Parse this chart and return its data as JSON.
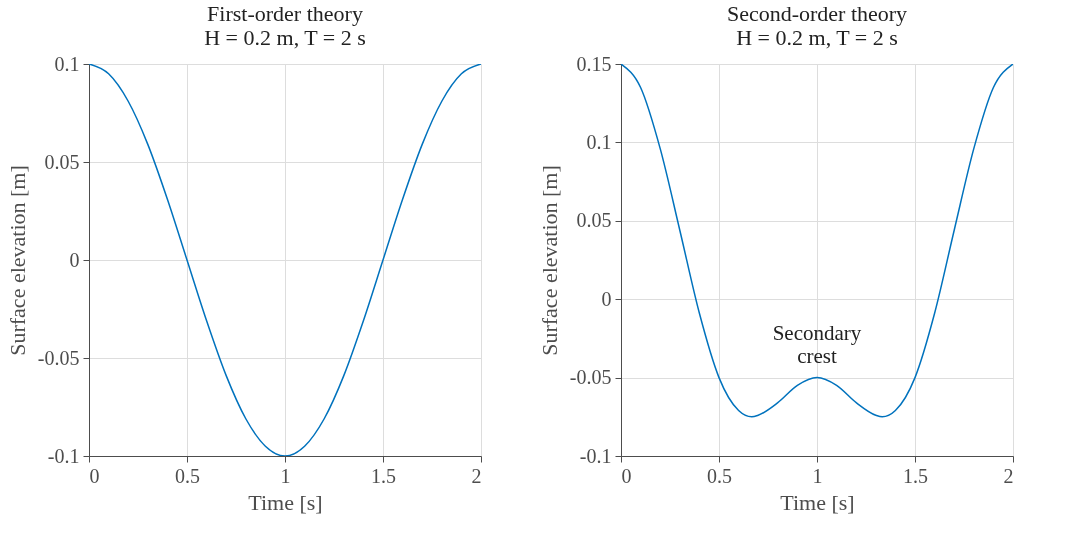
{
  "chart_data": [
    {
      "type": "line",
      "title": "First-order theory",
      "subtitle": "H = 0.2 m, T = 2 s",
      "xlabel": "Time [s]",
      "ylabel": "Surface elevation [m]",
      "x": [
        0,
        0.1,
        0.2,
        0.3,
        0.4,
        0.5,
        0.6,
        0.7,
        0.8,
        0.9,
        1,
        1.1,
        1.2,
        1.3,
        1.4,
        1.5,
        1.6,
        1.7,
        1.8,
        1.9,
        2
      ],
      "series": [
        {
          "color": "#0072bd",
          "values": [
            0.1,
            0.095,
            0.081,
            0.059,
            0.031,
            0,
            -0.031,
            -0.059,
            -0.081,
            -0.095,
            -0.1,
            -0.095,
            -0.081,
            -0.059,
            -0.031,
            0,
            0.031,
            0.059,
            0.081,
            0.095,
            0.1
          ]
        }
      ],
      "xlim": [
        0,
        2
      ],
      "xticks": [
        0,
        0.5,
        1,
        1.5,
        2
      ],
      "ylim": [
        -0.1,
        0.1
      ],
      "yticks": [
        -0.1,
        -0.05,
        0,
        0.05,
        0.1
      ],
      "grid": true
    },
    {
      "type": "line",
      "title": "Second-order theory",
      "subtitle": "H = 0.2 m, T = 2 s",
      "xlabel": "Time [s]",
      "ylabel": "Surface elevation [m]",
      "x": [
        0,
        0.1,
        0.2,
        0.3,
        0.4,
        0.5,
        0.6,
        0.667,
        0.7,
        0.8,
        0.9,
        1,
        1.1,
        1.2,
        1.3,
        1.333,
        1.4,
        1.5,
        1.6,
        1.7,
        1.8,
        1.9,
        2
      ],
      "series": [
        {
          "color": "#0072bd",
          "values": [
            0.15,
            0.135,
            0.096,
            0.044,
            -0.009,
            -0.05,
            -0.071,
            -0.075,
            -0.074,
            -0.066,
            -0.055,
            -0.05,
            -0.055,
            -0.066,
            -0.074,
            -0.075,
            -0.071,
            -0.05,
            -0.009,
            0.044,
            0.096,
            0.135,
            0.15
          ]
        }
      ],
      "xlim": [
        0,
        2
      ],
      "xticks": [
        0,
        0.5,
        1,
        1.5,
        2
      ],
      "ylim": [
        -0.1,
        0.15
      ],
      "yticks": [
        -0.1,
        -0.05,
        0,
        0.05,
        0.1,
        0.15
      ],
      "grid": true,
      "annotations": [
        {
          "text": "Secondary crest",
          "x": 1,
          "y": -0.05
        }
      ]
    }
  ]
}
